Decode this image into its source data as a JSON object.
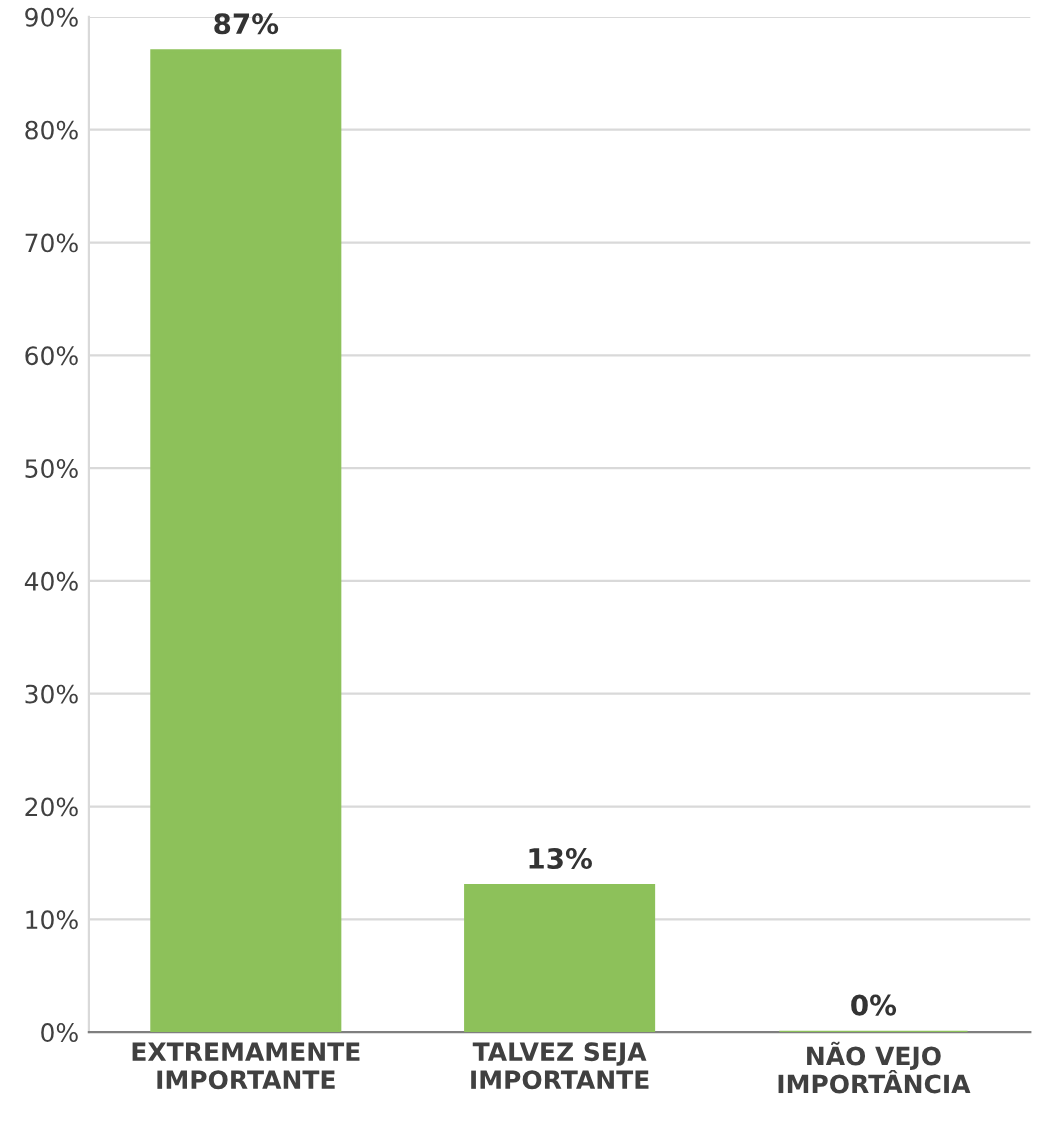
{
  "chart_data": {
    "type": "bar",
    "categories": [
      "EXTREMAMENTE\nIMPORTANTE",
      "TALVEZ SEJA\nIMPORTANTE",
      "NÃO VEJO\nIMPORTÂNCIA"
    ],
    "values": [
      87,
      13,
      0
    ],
    "value_labels": [
      "87%",
      "13%",
      "0%"
    ],
    "color": "#8dc15a",
    "ylim": [
      0,
      90
    ],
    "yticks": [
      {
        "value": 0,
        "label": "0%"
      },
      {
        "value": 10,
        "label": "10%"
      },
      {
        "value": 20,
        "label": "20%"
      },
      {
        "value": 30,
        "label": "30%"
      },
      {
        "value": 40,
        "label": "40%"
      },
      {
        "value": 50,
        "label": "50%"
      },
      {
        "value": 60,
        "label": "60%"
      },
      {
        "value": 70,
        "label": "70%"
      },
      {
        "value": 80,
        "label": "80%"
      },
      {
        "value": 90,
        "label": "90%"
      }
    ],
    "grid": "y",
    "legend": false
  }
}
